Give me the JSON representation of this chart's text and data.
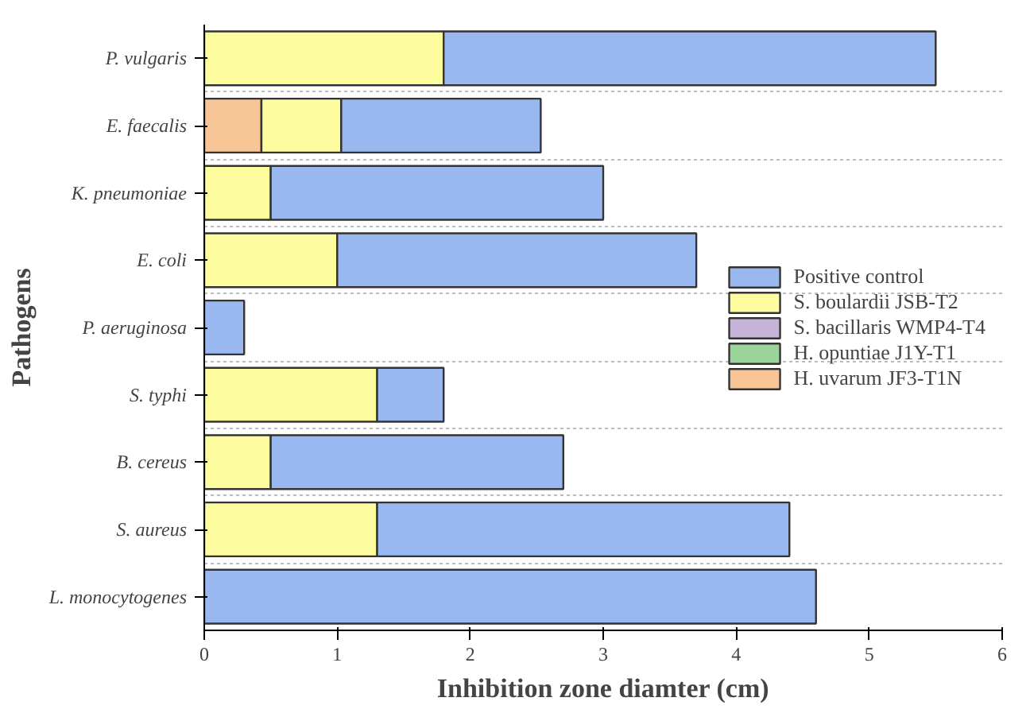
{
  "chart_data": {
    "type": "bar",
    "orientation": "horizontal",
    "stacked": true,
    "xlabel": "Inhibition zone diamter (cm)",
    "ylabel": "Pathogens",
    "categories": [
      "P. vulgaris",
      "E. faecalis",
      "K. pneumoniae",
      "E. coli",
      "P. aeruginosa",
      "S. typhi",
      "B. cereus",
      "S. aureus",
      "L. monocytogenes"
    ],
    "series": [
      {
        "name": "H. uvarum JF3-T1N",
        "color": "#f8c597",
        "values": [
          null,
          0.43,
          null,
          null,
          null,
          null,
          null,
          null,
          null
        ]
      },
      {
        "name": "H. opuntiae J1Y-T1",
        "color": "#9bd49b",
        "values": [
          null,
          null,
          null,
          null,
          null,
          null,
          null,
          null,
          null
        ]
      },
      {
        "name": "S. bacillaris WMP4-T4",
        "color": "#c5b3d9",
        "values": [
          null,
          null,
          null,
          null,
          null,
          null,
          null,
          null,
          null
        ]
      },
      {
        "name": "S. boulardii JSB-T2",
        "color": "#fdfd9f",
        "values": [
          1.8,
          0.6,
          0.5,
          1.0,
          null,
          1.3,
          0.5,
          1.3,
          null
        ]
      },
      {
        "name": "Positive control",
        "color": "#9ab8f0",
        "values": [
          3.7,
          1.5,
          2.5,
          2.7,
          0.3,
          0.5,
          2.2,
          3.1,
          4.6
        ]
      }
    ],
    "xlim": [
      0,
      6
    ],
    "xticks": [
      0,
      1,
      2,
      3,
      4,
      5,
      6
    ],
    "grid": "y",
    "legend": "right"
  }
}
